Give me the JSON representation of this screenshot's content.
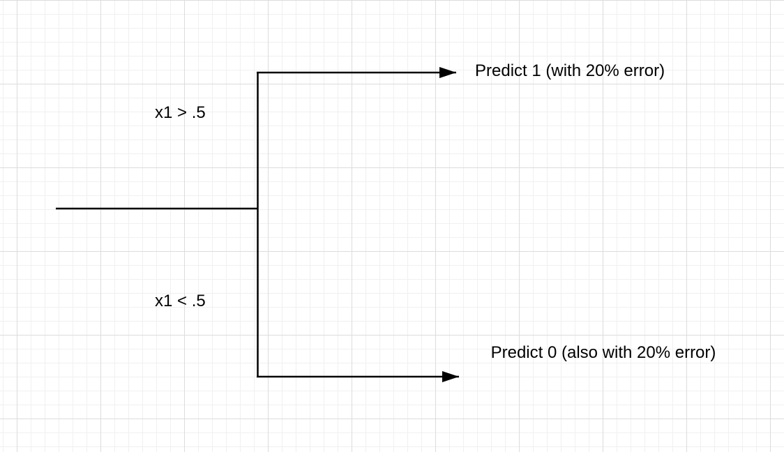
{
  "diagram": {
    "root_condition_true": "x1 > .5",
    "root_condition_false": "x1 < .5",
    "leaf_true": "Predict 1 (with 20% error)",
    "leaf_false": "Predict 0 (also with 20% error)"
  }
}
